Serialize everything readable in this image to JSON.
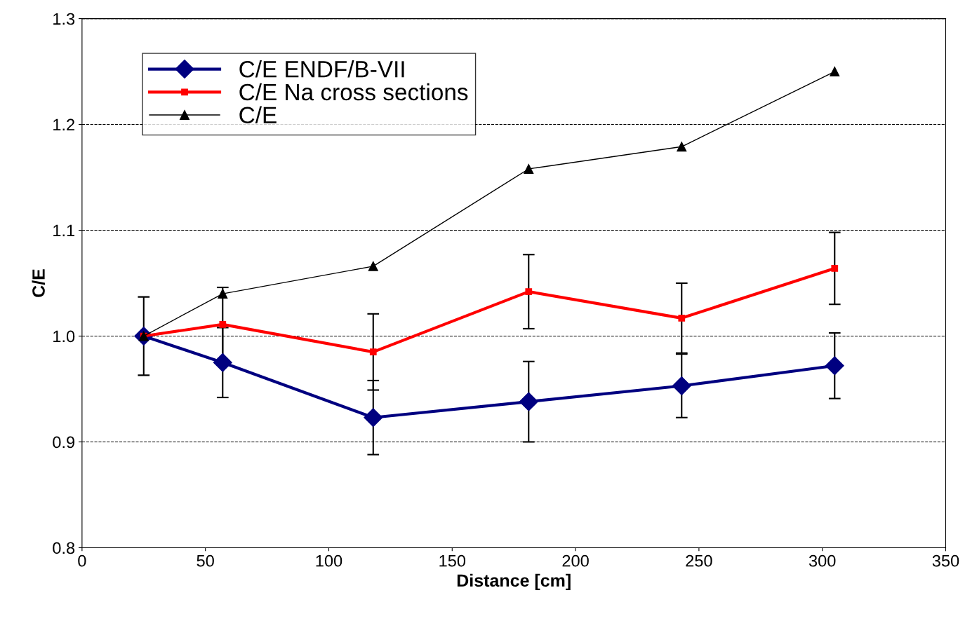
{
  "chart_data": {
    "type": "line",
    "xlabel": "Distance [cm]",
    "ylabel": "C/E",
    "xlim": [
      0,
      350
    ],
    "xticks": [
      0,
      50,
      100,
      150,
      200,
      250,
      300,
      350
    ],
    "ylim": [
      0.8,
      1.3
    ],
    "yticks": [
      {
        "value": 0.8,
        "label": "0.8"
      },
      {
        "value": 0.9,
        "label": "0.9"
      },
      {
        "value": 1.0,
        "label": "1.0"
      },
      {
        "value": 1.1,
        "label": "1.1"
      },
      {
        "value": 1.2,
        "label": "1.2"
      },
      {
        "value": 1.3,
        "label": "1.3"
      }
    ],
    "grid": "y",
    "legend": "top left",
    "x": [
      25,
      57,
      118,
      181,
      243,
      305
    ],
    "series": [
      {
        "name": "C/E ENDF/B-VII",
        "color": "#000080",
        "marker": "diamond",
        "values": [
          1.0,
          0.975,
          0.923,
          0.938,
          0.953,
          0.972
        ],
        "errors": [
          0.037,
          0.033,
          0.035,
          0.038,
          0.03,
          0.031
        ]
      },
      {
        "name": "C/E Na cross sections",
        "color": "#ff0000",
        "marker": "square",
        "values": [
          1.0,
          1.011,
          0.985,
          1.042,
          1.017,
          1.064
        ],
        "errors": [
          null,
          0.035,
          0.036,
          0.035,
          0.033,
          0.034
        ]
      },
      {
        "name": "C/E",
        "color": "#000000",
        "marker": "triangle",
        "values": [
          1.0,
          1.04,
          1.066,
          1.158,
          1.179,
          1.25
        ]
      }
    ]
  }
}
